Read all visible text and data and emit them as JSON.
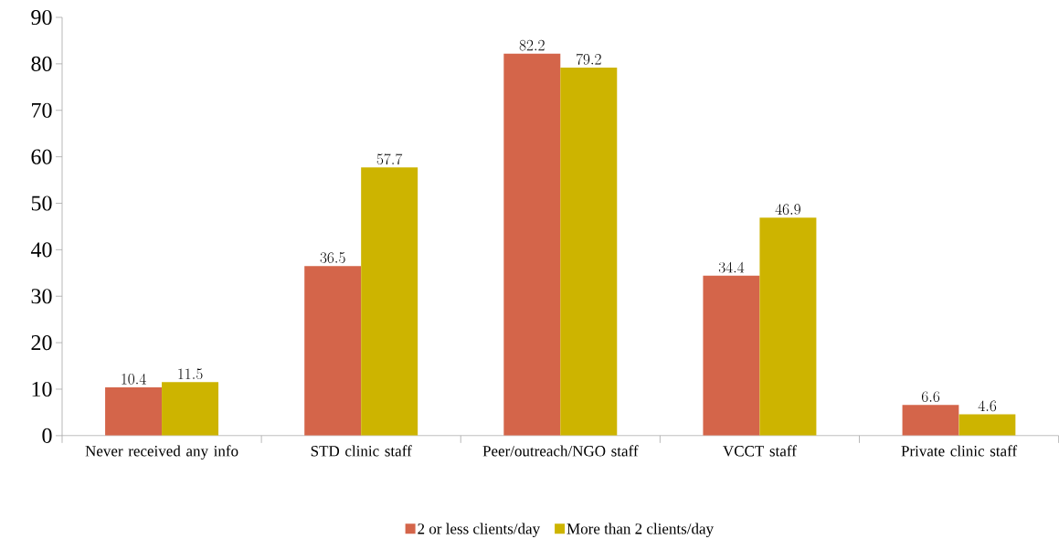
{
  "chart_data": {
    "type": "bar",
    "categories": [
      "Never received any info",
      "STD clinic staff",
      "Peer/outreach/NGO staff",
      "VCCT staff",
      "Private clinic staff"
    ],
    "series": [
      {
        "name": "2 or less clients/day",
        "color": "#d4654a",
        "values": [
          10.4,
          36.5,
          82.2,
          34.4,
          6.6
        ]
      },
      {
        "name": "More than 2 clients/day",
        "color": "#cdb400",
        "values": [
          11.5,
          57.7,
          79.2,
          46.9,
          4.6
        ]
      }
    ],
    "ylim": [
      0,
      90
    ],
    "yticks": [
      0,
      10,
      20,
      30,
      40,
      50,
      60,
      70,
      80,
      90
    ],
    "data_labels": true,
    "legend": "bottom",
    "grid": false
  }
}
